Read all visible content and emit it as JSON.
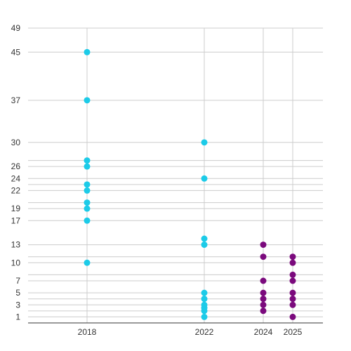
{
  "chart_data": {
    "type": "scatter",
    "title": "",
    "xlabel": "",
    "ylabel": "",
    "x_ticks": [
      2018,
      2022,
      2024,
      2025
    ],
    "y_ticks": [
      1,
      3,
      5,
      7,
      10,
      13,
      17,
      19,
      22,
      24,
      26,
      30,
      37,
      45,
      49
    ],
    "y_gridlines": [
      1,
      2,
      3,
      4,
      5,
      7,
      8,
      10,
      11,
      13,
      17,
      19,
      20,
      22,
      23,
      24,
      26,
      27,
      30,
      37,
      45,
      49
    ],
    "xlim": [
      2014,
      2026
    ],
    "ylim": [
      0,
      49
    ],
    "grid": true,
    "legend": "none",
    "series": [
      {
        "color": "#1ccbe8",
        "points": [
          [
            2018,
            45
          ],
          [
            2018,
            37
          ],
          [
            2018,
            27
          ],
          [
            2018,
            26
          ],
          [
            2018,
            23
          ],
          [
            2018,
            22
          ],
          [
            2018,
            20
          ],
          [
            2018,
            19
          ],
          [
            2018,
            17
          ],
          [
            2018,
            10
          ],
          [
            2022,
            30
          ],
          [
            2022,
            24
          ],
          [
            2022,
            14
          ],
          [
            2022,
            13
          ],
          [
            2022,
            5
          ],
          [
            2022,
            4
          ],
          [
            2022,
            3
          ],
          [
            2022,
            2.5
          ],
          [
            2022,
            2
          ],
          [
            2022,
            1
          ]
        ]
      },
      {
        "color": "#7b0a7d",
        "points": [
          [
            2024,
            13
          ],
          [
            2024,
            11
          ],
          [
            2024,
            7
          ],
          [
            2024,
            5
          ],
          [
            2024,
            4
          ],
          [
            2024,
            3
          ],
          [
            2024,
            2
          ],
          [
            2025,
            11
          ],
          [
            2025,
            10
          ],
          [
            2025,
            8
          ],
          [
            2025,
            7
          ],
          [
            2025,
            5
          ],
          [
            2025,
            4
          ],
          [
            2025,
            3
          ],
          [
            2025,
            1
          ]
        ]
      }
    ]
  }
}
